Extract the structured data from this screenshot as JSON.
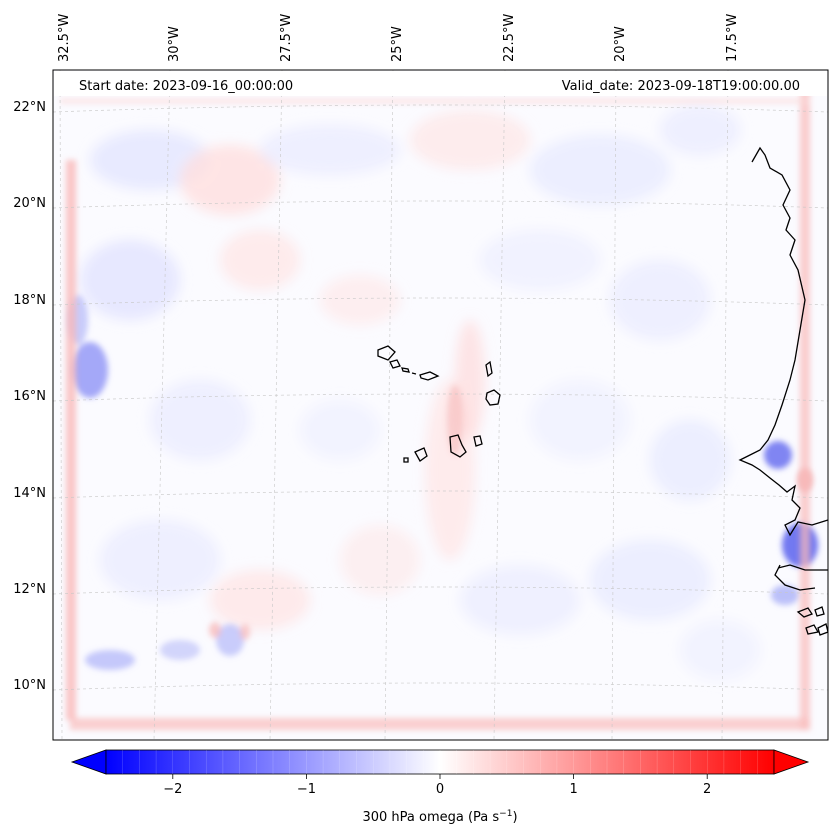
{
  "map": {
    "header": {
      "start_date": "Start date: 2023-09-16_00:00:00",
      "valid_date": "Valid_date: 2023-09-18T19:00:00.00"
    },
    "lon_labels": [
      "32.5°W",
      "30°W",
      "27.5°W",
      "25°W",
      "22.5°W",
      "20°W",
      "17.5°W"
    ],
    "lat_labels": [
      "22°N",
      "20°N",
      "18°N",
      "16°N",
      "14°N",
      "12°N",
      "10°N"
    ],
    "colorbar": {
      "ticks": [
        "−2",
        "−1",
        "0",
        "1",
        "2"
      ],
      "tick_values": [
        -2,
        -1,
        0,
        1,
        2
      ],
      "range": [
        -2.5,
        2.5
      ],
      "label_prefix": "300 hPa omega (Pa s",
      "label_sup": "−1",
      "label_suffix": ")",
      "colors": {
        "low": "#0000ff",
        "mid": "#ffffff",
        "high": "#ff0000"
      }
    },
    "colors": {
      "negative": "#3c46f0",
      "positive": "#f04646",
      "coast": "#000000",
      "grid": "#c8c8c8"
    }
  }
}
